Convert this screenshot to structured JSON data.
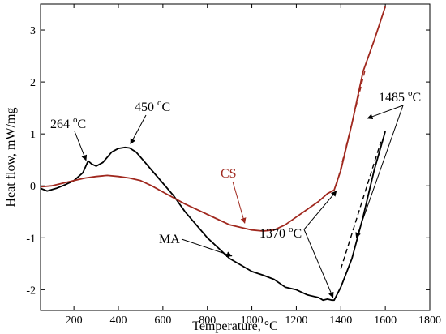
{
  "chart_data": {
    "type": "line",
    "title": "",
    "xlabel": "Temperature, °C",
    "ylabel": "Heat flow, mW/mg",
    "xlim": [
      50,
      1800
    ],
    "ylim": [
      -2.4,
      3.5
    ],
    "xticks": [
      200,
      400,
      600,
      800,
      1000,
      1200,
      1400,
      1600,
      1800
    ],
    "yticks": [
      -2,
      -1,
      0,
      1,
      2,
      3
    ],
    "grid": false,
    "legend": "none",
    "series": [
      {
        "name": "MA",
        "color": "#000000",
        "x": [
          50,
          80,
          120,
          160,
          200,
          240,
          264,
          280,
          300,
          330,
          370,
          400,
          430,
          450,
          480,
          510,
          550,
          600,
          650,
          700,
          800,
          900,
          1000,
          1050,
          1100,
          1150,
          1200,
          1250,
          1300,
          1320,
          1340,
          1360,
          1370,
          1400,
          1450,
          1500,
          1550,
          1600
        ],
        "y": [
          -0.05,
          -0.1,
          -0.05,
          0.02,
          0.1,
          0.25,
          0.48,
          0.42,
          0.38,
          0.45,
          0.65,
          0.72,
          0.74,
          0.73,
          0.65,
          0.5,
          0.3,
          0.05,
          -0.2,
          -0.5,
          -1.0,
          -1.4,
          -1.65,
          -1.72,
          -1.8,
          -1.95,
          -2.0,
          -2.1,
          -2.15,
          -2.2,
          -2.18,
          -2.2,
          -2.2,
          -1.95,
          -1.4,
          -0.6,
          0.3,
          1.05
        ]
      },
      {
        "name": "CS",
        "color": "#a0281e",
        "x": [
          50,
          100,
          150,
          200,
          250,
          300,
          350,
          400,
          450,
          500,
          550,
          600,
          700,
          800,
          900,
          1000,
          1050,
          1100,
          1150,
          1200,
          1250,
          1300,
          1340,
          1370,
          1400,
          1450,
          1500,
          1550,
          1600
        ],
        "y": [
          -0.02,
          0.0,
          0.05,
          0.1,
          0.15,
          0.18,
          0.2,
          0.18,
          0.15,
          0.1,
          0.0,
          -0.12,
          -0.35,
          -0.55,
          -0.75,
          -0.85,
          -0.87,
          -0.85,
          -0.75,
          -0.6,
          -0.45,
          -0.3,
          -0.15,
          -0.08,
          0.3,
          1.2,
          2.2,
          2.8,
          3.45
        ]
      }
    ],
    "extrapolation_lines": [
      {
        "color": "#a0281e",
        "style": "dashed",
        "x": [
          1380,
          1510
        ],
        "y": [
          0.0,
          2.25
        ]
      },
      {
        "color": "#000000",
        "style": "dashed",
        "x": [
          1400,
          1580
        ],
        "y": [
          -1.6,
          0.85
        ]
      }
    ],
    "annotations": [
      {
        "id": "anno-264",
        "label": "264 °C",
        "target": [
          262,
          0.46
        ],
        "anchor": "above-left"
      },
      {
        "id": "anno-450",
        "label": "450 °C",
        "target": [
          440,
          0.76
        ],
        "anchor": "above-right"
      },
      {
        "id": "anno-1485",
        "label": "1485 °C",
        "targets": [
          [
            1520,
            1.3
          ],
          [
            1470,
            -1.0
          ]
        ],
        "anchor": "top-right"
      },
      {
        "id": "anno-1370",
        "label": "1370 °C",
        "targets": [
          [
            1380,
            -0.1
          ],
          [
            1365,
            -2.15
          ]
        ],
        "anchor": "left-of-dip"
      },
      {
        "id": "anno-ma",
        "label": "MA",
        "target": [
          910,
          -1.35
        ],
        "color": "#000000"
      },
      {
        "id": "anno-cs",
        "label": "CS",
        "target": [
          990,
          -0.78
        ],
        "color": "#a0281e"
      }
    ]
  }
}
